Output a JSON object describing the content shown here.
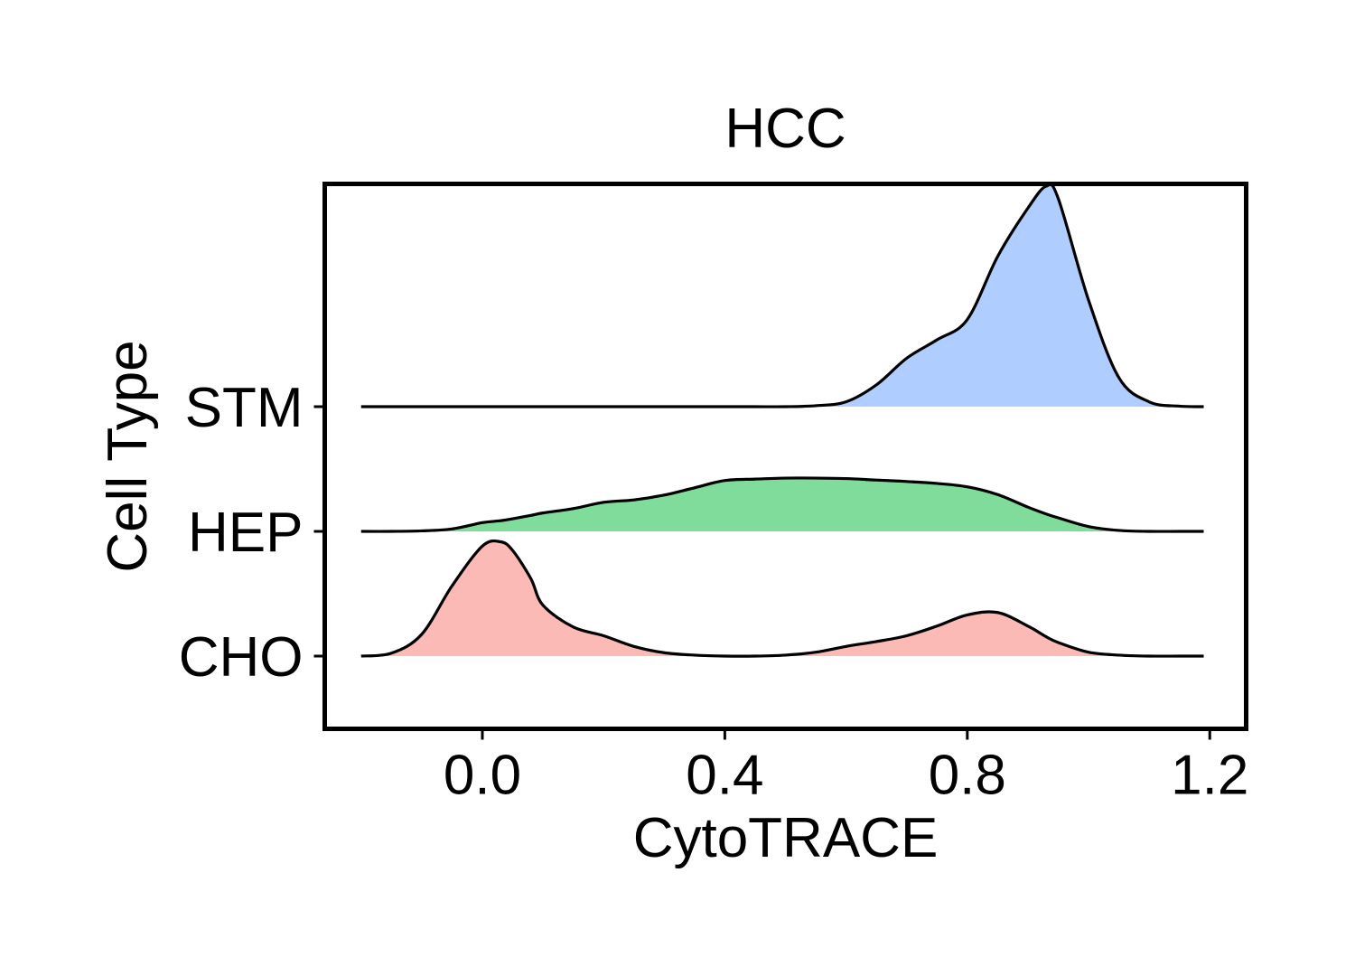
{
  "chart_data": {
    "type": "ridgeline",
    "title": "HCC",
    "xlabel": "CytoTRACE",
    "ylabel": "Cell Type",
    "xlim": [
      -0.26,
      1.26
    ],
    "x_ticks": [
      0.0,
      0.4,
      0.8,
      1.2
    ],
    "x_tick_labels": [
      "0.0",
      "0.4",
      "0.8",
      "1.2"
    ],
    "grid": false,
    "x": [
      -0.2,
      -0.15,
      -0.1,
      -0.05,
      0.0,
      0.03,
      0.05,
      0.08,
      0.1,
      0.15,
      0.2,
      0.25,
      0.3,
      0.35,
      0.4,
      0.45,
      0.5,
      0.55,
      0.6,
      0.65,
      0.7,
      0.75,
      0.8,
      0.85,
      0.9,
      0.93,
      0.95,
      1.0,
      1.05,
      1.1,
      1.15,
      1.19
    ],
    "series": [
      {
        "name": "CHO",
        "color": "#F8766D",
        "density": [
          0.0,
          0.06,
          0.45,
          1.45,
          2.27,
          2.36,
          2.18,
          1.6,
          1.05,
          0.6,
          0.42,
          0.2,
          0.07,
          0.02,
          0.0,
          0.0,
          0.02,
          0.08,
          0.2,
          0.3,
          0.42,
          0.62,
          0.85,
          0.9,
          0.62,
          0.4,
          0.28,
          0.08,
          0.02,
          0.0,
          0.0,
          0.0
        ]
      },
      {
        "name": "HEP",
        "color": "#00BA38",
        "density": [
          0.0,
          0.0,
          0.01,
          0.05,
          0.18,
          0.22,
          0.26,
          0.33,
          0.38,
          0.47,
          0.6,
          0.65,
          0.75,
          0.9,
          1.05,
          1.08,
          1.1,
          1.1,
          1.09,
          1.06,
          1.03,
          0.99,
          0.92,
          0.76,
          0.5,
          0.36,
          0.28,
          0.1,
          0.02,
          0.0,
          0.0,
          0.0
        ]
      },
      {
        "name": "STM",
        "color": "#619CFF",
        "density": [
          0.0,
          0.0,
          0.0,
          0.0,
          0.0,
          0.0,
          0.0,
          0.0,
          0.0,
          0.0,
          0.0,
          0.0,
          0.0,
          0.0,
          0.0,
          0.0,
          0.0,
          0.02,
          0.1,
          0.45,
          1.0,
          1.38,
          1.8,
          3.1,
          4.1,
          4.55,
          4.3,
          2.2,
          0.6,
          0.1,
          0.01,
          0.0
        ]
      }
    ]
  }
}
